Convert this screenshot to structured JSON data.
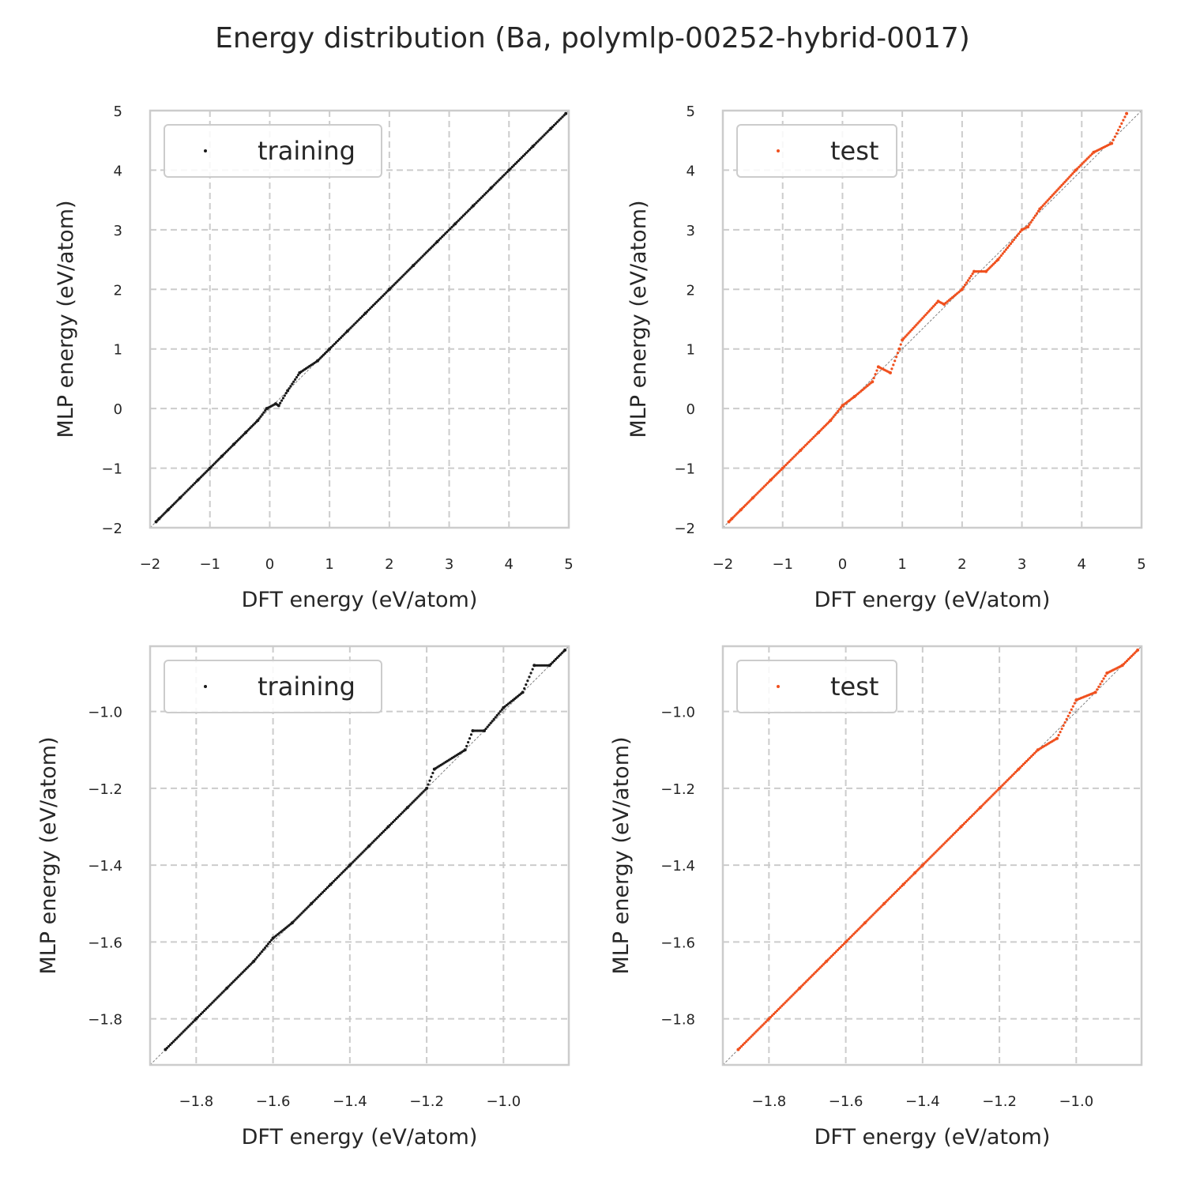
{
  "figure": {
    "title": "Energy distribution (Ba, polymlp-00252-hybrid-0017)"
  },
  "colors": {
    "training": "#1a1a1a",
    "test": "#f0501e",
    "grid": "#cccccc",
    "diagonal": "#808080"
  },
  "chart_data": [
    {
      "type": "scatter",
      "panel": "top-left",
      "xlabel": "DFT energy (eV/atom)",
      "ylabel": "MLP energy (eV/atom)",
      "xlim": [
        -2.0,
        5.0
      ],
      "ylim": [
        -2.0,
        5.0
      ],
      "xticks": [
        -2,
        -1,
        0,
        1,
        2,
        3,
        4,
        5
      ],
      "yticks": [
        -2,
        -1,
        0,
        1,
        2,
        3,
        4,
        5
      ],
      "tick_labels_x": [
        "−2",
        "−1",
        "0",
        "1",
        "2",
        "3",
        "4",
        "5"
      ],
      "tick_labels_y": [
        "−2",
        "−1",
        "0",
        "1",
        "2",
        "3",
        "4",
        "5"
      ],
      "grid": true,
      "diagonal": true,
      "legend_position": "upper-left",
      "series": [
        {
          "name": "training",
          "color": "#1a1a1a",
          "points": [
            [
              -1.9,
              -1.9
            ],
            [
              -1.85,
              -1.85
            ],
            [
              -1.7,
              -1.7
            ],
            [
              -1.5,
              -1.5
            ],
            [
              -1.2,
              -1.2
            ],
            [
              -1.0,
              -1.0
            ],
            [
              -0.8,
              -0.8
            ],
            [
              -0.6,
              -0.6
            ],
            [
              -0.4,
              -0.4
            ],
            [
              -0.2,
              -0.2
            ],
            [
              -0.05,
              0.0
            ],
            [
              0.1,
              0.08
            ],
            [
              0.15,
              0.05
            ],
            [
              0.3,
              0.3
            ],
            [
              0.5,
              0.6
            ],
            [
              0.8,
              0.8
            ],
            [
              1.0,
              1.0
            ],
            [
              1.3,
              1.3
            ],
            [
              1.6,
              1.6
            ],
            [
              2.0,
              2.0
            ],
            [
              2.4,
              2.4
            ],
            [
              2.8,
              2.8
            ],
            [
              3.1,
              3.1
            ],
            [
              3.4,
              3.4
            ],
            [
              3.7,
              3.7
            ],
            [
              4.0,
              4.0
            ],
            [
              4.4,
              4.4
            ],
            [
              4.7,
              4.7
            ],
            [
              4.95,
              4.95
            ]
          ]
        }
      ]
    },
    {
      "type": "scatter",
      "panel": "top-right",
      "xlabel": "DFT energy (eV/atom)",
      "ylabel": "MLP energy (eV/atom)",
      "xlim": [
        -2.0,
        5.0
      ],
      "ylim": [
        -2.0,
        5.0
      ],
      "xticks": [
        -2,
        -1,
        0,
        1,
        2,
        3,
        4,
        5
      ],
      "yticks": [
        -2,
        -1,
        0,
        1,
        2,
        3,
        4,
        5
      ],
      "tick_labels_x": [
        "−2",
        "−1",
        "0",
        "1",
        "2",
        "3",
        "4",
        "5"
      ],
      "tick_labels_y": [
        "−2",
        "−1",
        "0",
        "1",
        "2",
        "3",
        "4",
        "5"
      ],
      "grid": true,
      "diagonal": true,
      "legend_position": "upper-left",
      "series": [
        {
          "name": "test",
          "color": "#f0501e",
          "points": [
            [
              -1.9,
              -1.9
            ],
            [
              -1.85,
              -1.85
            ],
            [
              -1.7,
              -1.7
            ],
            [
              -1.5,
              -1.5
            ],
            [
              -1.2,
              -1.2
            ],
            [
              -1.0,
              -1.0
            ],
            [
              -0.7,
              -0.7
            ],
            [
              -0.4,
              -0.4
            ],
            [
              -0.2,
              -0.2
            ],
            [
              0.0,
              0.05
            ],
            [
              0.2,
              0.2
            ],
            [
              0.5,
              0.45
            ],
            [
              0.6,
              0.7
            ],
            [
              0.8,
              0.6
            ],
            [
              0.95,
              1.0
            ],
            [
              1.0,
              1.15
            ],
            [
              1.6,
              1.8
            ],
            [
              1.7,
              1.75
            ],
            [
              2.0,
              2.0
            ],
            [
              2.2,
              2.3
            ],
            [
              2.4,
              2.3
            ],
            [
              2.6,
              2.5
            ],
            [
              3.0,
              3.0
            ],
            [
              3.1,
              3.05
            ],
            [
              3.3,
              3.35
            ],
            [
              3.9,
              4.0
            ],
            [
              4.2,
              4.3
            ],
            [
              4.5,
              4.45
            ],
            [
              4.75,
              4.95
            ]
          ]
        }
      ]
    },
    {
      "type": "scatter",
      "panel": "bottom-left",
      "xlabel": "DFT energy (eV/atom)",
      "ylabel": "MLP energy (eV/atom)",
      "xlim": [
        -1.92,
        -0.83
      ],
      "ylim": [
        -1.92,
        -0.83
      ],
      "xticks": [
        -1.8,
        -1.6,
        -1.4,
        -1.2,
        -1.0
      ],
      "yticks": [
        -1.8,
        -1.6,
        -1.4,
        -1.2,
        -1.0
      ],
      "tick_labels_x": [
        "−1.8",
        "−1.6",
        "−1.4",
        "−1.2",
        "−1.0"
      ],
      "tick_labels_y": [
        "−1.8",
        "−1.6",
        "−1.4",
        "−1.2",
        "−1.0"
      ],
      "grid": true,
      "diagonal": true,
      "legend_position": "upper-left",
      "series": [
        {
          "name": "training",
          "color": "#1a1a1a",
          "points": [
            [
              -1.88,
              -1.88
            ],
            [
              -1.8,
              -1.8
            ],
            [
              -1.72,
              -1.72
            ],
            [
              -1.65,
              -1.65
            ],
            [
              -1.6,
              -1.59
            ],
            [
              -1.55,
              -1.55
            ],
            [
              -1.5,
              -1.5
            ],
            [
              -1.45,
              -1.45
            ],
            [
              -1.4,
              -1.4
            ],
            [
              -1.35,
              -1.35
            ],
            [
              -1.3,
              -1.3
            ],
            [
              -1.25,
              -1.25
            ],
            [
              -1.2,
              -1.2
            ],
            [
              -1.18,
              -1.15
            ],
            [
              -1.1,
              -1.1
            ],
            [
              -1.05,
              -1.05
            ],
            [
              -1.08,
              -1.05
            ],
            [
              -1.0,
              -0.99
            ],
            [
              -0.95,
              -0.95
            ],
            [
              -0.92,
              -0.88
            ],
            [
              -0.88,
              -0.88
            ],
            [
              -0.84,
              -0.84
            ]
          ]
        }
      ]
    },
    {
      "type": "scatter",
      "panel": "bottom-right",
      "xlabel": "DFT energy (eV/atom)",
      "ylabel": "MLP energy (eV/atom)",
      "xlim": [
        -1.92,
        -0.83
      ],
      "ylim": [
        -1.92,
        -0.83
      ],
      "xticks": [
        -1.8,
        -1.6,
        -1.4,
        -1.2,
        -1.0
      ],
      "yticks": [
        -1.8,
        -1.6,
        -1.4,
        -1.2,
        -1.0
      ],
      "tick_labels_x": [
        "−1.8",
        "−1.6",
        "−1.4",
        "−1.2",
        "−1.0"
      ],
      "tick_labels_y": [
        "−1.8",
        "−1.6",
        "−1.4",
        "−1.2",
        "−1.0"
      ],
      "grid": true,
      "diagonal": true,
      "legend_position": "upper-left",
      "series": [
        {
          "name": "test",
          "color": "#f0501e",
          "points": [
            [
              -1.88,
              -1.88
            ],
            [
              -1.8,
              -1.8
            ],
            [
              -1.72,
              -1.72
            ],
            [
              -1.65,
              -1.65
            ],
            [
              -1.6,
              -1.6
            ],
            [
              -1.55,
              -1.55
            ],
            [
              -1.5,
              -1.5
            ],
            [
              -1.45,
              -1.45
            ],
            [
              -1.42,
              -1.42
            ],
            [
              -1.4,
              -1.4
            ],
            [
              -1.3,
              -1.3
            ],
            [
              -1.25,
              -1.25
            ],
            [
              -1.2,
              -1.2
            ],
            [
              -1.15,
              -1.15
            ],
            [
              -1.1,
              -1.1
            ],
            [
              -1.05,
              -1.07
            ],
            [
              -1.0,
              -0.97
            ],
            [
              -0.95,
              -0.95
            ],
            [
              -0.92,
              -0.9
            ],
            [
              -0.88,
              -0.88
            ],
            [
              -0.84,
              -0.84
            ]
          ]
        }
      ]
    }
  ]
}
